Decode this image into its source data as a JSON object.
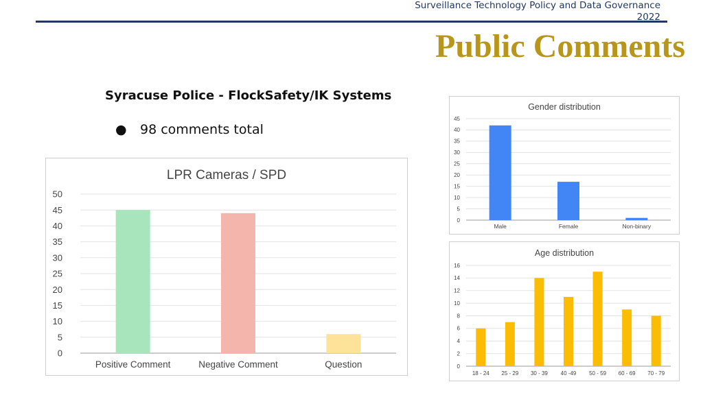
{
  "header": {
    "org_line1": "Surveillance Technology Policy and Data Governance",
    "org_line2": "2022"
  },
  "slide": {
    "title": "Public Comments",
    "subtitle": "Syracuse Police - FlockSafety/IK Systems",
    "bullet_glyph": "●",
    "bullet_text": "98 comments total"
  },
  "chart_data": [
    {
      "type": "bar",
      "title": "LPR Cameras / SPD",
      "categories": [
        "Positive Comment",
        "Negative Comment",
        "Question"
      ],
      "values": [
        45,
        44,
        6
      ],
      "colors": [
        "#a8e4bc",
        "#f4b5ad",
        "#fde39a"
      ],
      "ylim": [
        0,
        50
      ],
      "yticks": [
        0,
        5,
        10,
        15,
        20,
        25,
        30,
        35,
        40,
        45,
        50
      ],
      "grid": true
    },
    {
      "type": "bar",
      "title": "Gender distribution",
      "categories": [
        "Male",
        "Female",
        "Non-binary"
      ],
      "values": [
        42,
        17,
        1
      ],
      "color": "#4285f4",
      "ylim": [
        0,
        45
      ],
      "yticks": [
        0,
        5,
        10,
        15,
        20,
        25,
        30,
        35,
        40,
        45
      ],
      "grid": true
    },
    {
      "type": "bar",
      "title": "Age distribution",
      "categories": [
        "18 - 24",
        "25 - 29",
        "30 - 39",
        "40 -49",
        "50 - 59",
        "60 - 69",
        "70 - 79"
      ],
      "values": [
        6,
        7,
        14,
        11,
        15,
        9,
        8
      ],
      "color": "#fbbc04",
      "ylim": [
        0,
        16
      ],
      "yticks": [
        0,
        2,
        4,
        6,
        8,
        10,
        12,
        14,
        16
      ],
      "grid": true
    }
  ]
}
